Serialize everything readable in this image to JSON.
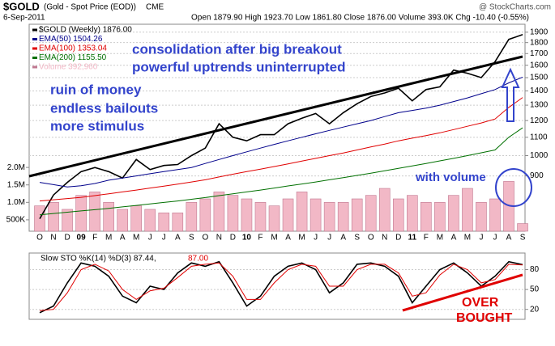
{
  "header": {
    "symbol": "$GOLD",
    "name": "(Gold - Spot Price (EOD))",
    "exchange": "CME",
    "date": "6-Sep-2011",
    "quote": "Open 1879.90 High 1923.70 Low 1861.80 Close 1876.00 Volume 393.0K Chg -10.40 (-0.55%)",
    "source": "@ StockCharts.com"
  },
  "chart_data": [
    {
      "type": "line",
      "log": true,
      "grid": true,
      "categories": [
        "O",
        "N",
        "D",
        "09",
        "F",
        "M",
        "A",
        "M",
        "J",
        "J",
        "A",
        "S",
        "O",
        "N",
        "D",
        "10",
        "F",
        "M",
        "A",
        "M",
        "J",
        "J",
        "A",
        "S",
        "O",
        "N",
        "D",
        "11",
        "F",
        "M",
        "A",
        "M",
        "J",
        "J",
        "A",
        "S"
      ],
      "series": [
        {
          "name": "$GOLD (Weekly) 1876.00",
          "color": "#000000",
          "values": [
            720,
            815,
            870,
            920,
            940,
            920,
            890,
            980,
            930,
            950,
            955,
            1000,
            1040,
            1180,
            1100,
            1080,
            1115,
            1115,
            1180,
            1215,
            1245,
            1180,
            1250,
            1310,
            1360,
            1385,
            1420,
            1330,
            1410,
            1430,
            1560,
            1535,
            1500,
            1630,
            1830,
            1876
          ]
        },
        {
          "name": "EMA(50) 1504.26",
          "color": "#00008b",
          "values": [
            870,
            860,
            850,
            855,
            865,
            880,
            890,
            900,
            910,
            920,
            930,
            940,
            960,
            980,
            1000,
            1020,
            1040,
            1060,
            1080,
            1100,
            1120,
            1140,
            1160,
            1180,
            1200,
            1225,
            1250,
            1265,
            1280,
            1300,
            1325,
            1350,
            1380,
            1410,
            1460,
            1504
          ]
        },
        {
          "name": "EMA(100) 1353.04",
          "color": "#e00000",
          "values": [
            790,
            795,
            800,
            805,
            812,
            820,
            828,
            836,
            845,
            853,
            862,
            872,
            882,
            895,
            908,
            920,
            932,
            945,
            958,
            972,
            986,
            1000,
            1014,
            1030,
            1046,
            1062,
            1080,
            1095,
            1110,
            1126,
            1145,
            1165,
            1185,
            1210,
            1285,
            1353.04
          ]
        },
        {
          "name": "EMA(200) 1155.50",
          "color": "#007000",
          "values": [
            735,
            740,
            745,
            750,
            755,
            760,
            766,
            772,
            778,
            784,
            790,
            797,
            804,
            812,
            820,
            828,
            836,
            845,
            854,
            863,
            872,
            882,
            892,
            902,
            913,
            924,
            936,
            948,
            960,
            973,
            986,
            1000,
            1015,
            1030,
            1100,
            1155.5
          ]
        },
        {
          "name": "Volume 392,960",
          "color": "#f2b8c6",
          "type": "bar",
          "axis": "y2",
          "values": [
            900000,
            1000000,
            800000,
            1200000,
            1300000,
            1000000,
            800000,
            900000,
            800000,
            700000,
            700000,
            1000000,
            1100000,
            1300000,
            1200000,
            1100000,
            1000000,
            900000,
            1100000,
            1300000,
            1100000,
            1000000,
            1000000,
            1100000,
            1200000,
            1400000,
            1100000,
            1200000,
            1000000,
            1000000,
            1200000,
            1400000,
            1000000,
            1100000,
            1600000,
            392960
          ]
        }
      ],
      "ylim": [
        675,
        1980
      ],
      "yticks": [
        900,
        1000,
        1100,
        1200,
        1300,
        1400,
        1500,
        1600,
        1700,
        1800,
        1900
      ],
      "y2lim": [
        174000,
        6100000
      ],
      "y2ticks": [
        {
          "value": 500000,
          "label": "500K"
        },
        {
          "value": 1000000,
          "label": "1.0M"
        },
        {
          "value": 1500000,
          "label": "1.5M"
        },
        {
          "value": 2000000,
          "label": "2.0M"
        }
      ],
      "annotations": [
        "consolidation after big breakout",
        "powerful uptrends uninterrupted",
        "ruin of money",
        "endless bailouts",
        "more stimulus",
        "with volume"
      ]
    },
    {
      "type": "line",
      "grid": true,
      "series": [
        {
          "name": "Slow STO %K(14) %D(3) 87.44,",
          "color": "#000000",
          "values": [
            15,
            25,
            60,
            90,
            85,
            70,
            40,
            30,
            55,
            50,
            75,
            90,
            85,
            92,
            60,
            25,
            40,
            70,
            85,
            90,
            80,
            45,
            60,
            88,
            90,
            85,
            70,
            30,
            55,
            80,
            90,
            75,
            55,
            70,
            92,
            87.44
          ]
        },
        {
          "name": "87.00",
          "color": "#e00000",
          "values": [
            18,
            20,
            45,
            80,
            88,
            78,
            50,
            35,
            48,
            52,
            68,
            85,
            88,
            90,
            70,
            35,
            35,
            60,
            80,
            88,
            85,
            55,
            55,
            80,
            88,
            88,
            75,
            40,
            45,
            72,
            88,
            80,
            60,
            65,
            88,
            87.0
          ]
        }
      ],
      "ylim": [
        5,
        105
      ],
      "yticks": [
        20,
        50,
        80
      ],
      "annotations": [
        "OVER",
        "BOUGHT"
      ]
    }
  ]
}
